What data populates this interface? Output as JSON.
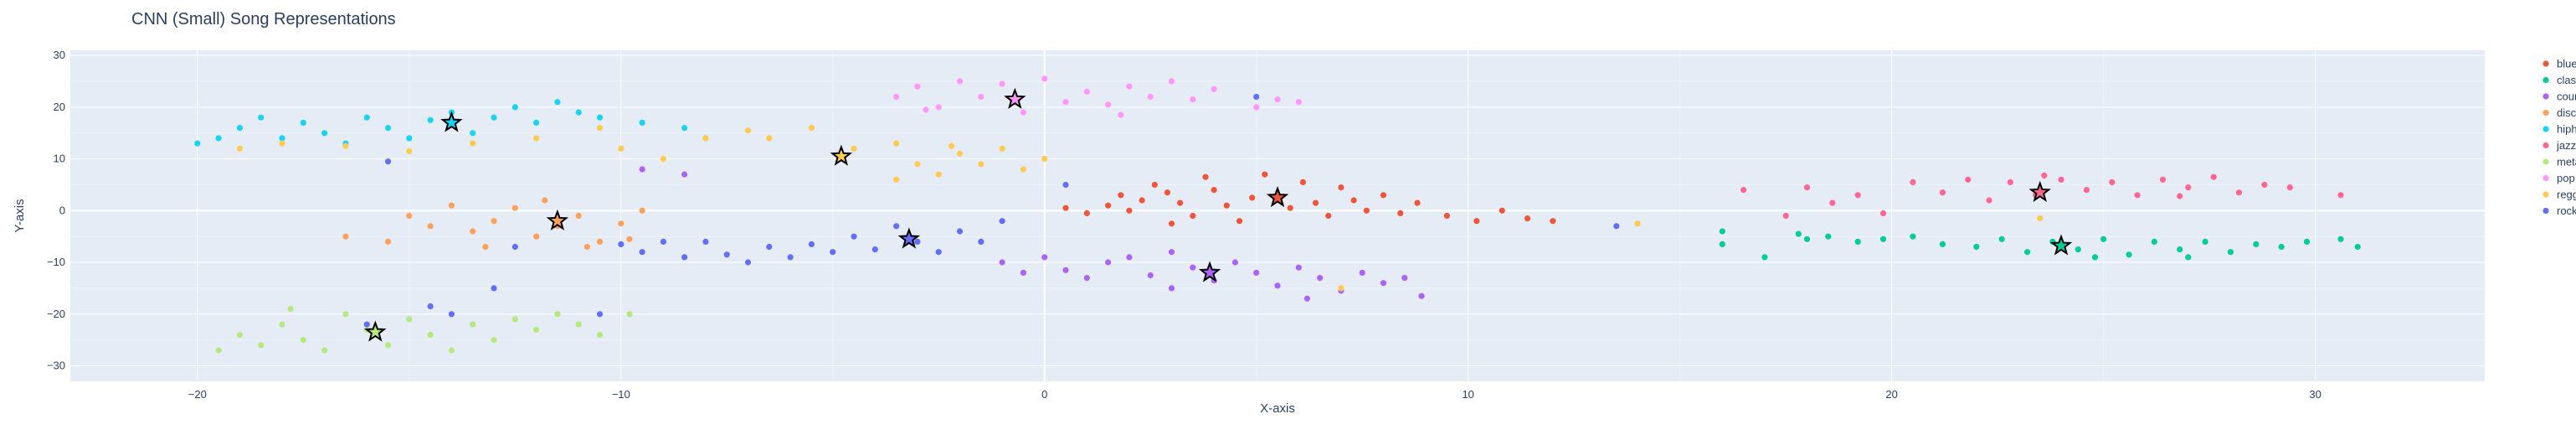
{
  "chart_data": {
    "type": "scatter",
    "title": "CNN (Small) Song Representations",
    "xlabel": "X-axis",
    "ylabel": "Y-axis",
    "xlim": [
      -23,
      34
    ],
    "ylim": [
      -33,
      31
    ],
    "x_ticks": [
      -20,
      -10,
      0,
      10,
      20,
      30
    ],
    "y_ticks": [
      -30,
      -20,
      -10,
      0,
      10,
      20,
      30
    ],
    "grid": true,
    "legend_position": "top-right",
    "centroid_marker": "star",
    "series": [
      {
        "name": "blues",
        "color": "#EF553B",
        "points": [
          [
            0.5,
            0.5
          ],
          [
            1.0,
            -0.5
          ],
          [
            1.5,
            1.0
          ],
          [
            2.0,
            0
          ],
          [
            2.3,
            2.0
          ],
          [
            2.6,
            5.0
          ],
          [
            2.9,
            3.5
          ],
          [
            3.2,
            1.5
          ],
          [
            3.5,
            -1.0
          ],
          [
            3.8,
            6.5
          ],
          [
            4.0,
            4.0
          ],
          [
            4.3,
            1.0
          ],
          [
            4.6,
            -2.0
          ],
          [
            4.9,
            2.5
          ],
          [
            5.2,
            7.0
          ],
          [
            5.5,
            3.0
          ],
          [
            5.8,
            0.5
          ],
          [
            6.1,
            5.5
          ],
          [
            6.4,
            1.5
          ],
          [
            6.7,
            -1.0
          ],
          [
            7.0,
            4.5
          ],
          [
            7.3,
            2.0
          ],
          [
            7.6,
            0
          ],
          [
            8.0,
            3.0
          ],
          [
            8.4,
            -0.5
          ],
          [
            8.8,
            1.5
          ],
          [
            9.5,
            -1.0
          ],
          [
            10.2,
            -2.0
          ],
          [
            10.8,
            0
          ],
          [
            11.4,
            -1.5
          ],
          [
            12.0,
            -2.0
          ],
          [
            3.0,
            -2.5
          ],
          [
            1.8,
            3.0
          ]
        ],
        "centroid": [
          5.5,
          2.5
        ]
      },
      {
        "name": "classical",
        "color": "#00CC96",
        "points": [
          [
            16.0,
            -4.0
          ],
          [
            17.0,
            -9.0
          ],
          [
            17.8,
            -4.5
          ],
          [
            18.5,
            -5.0
          ],
          [
            19.2,
            -6.0
          ],
          [
            19.8,
            -5.5
          ],
          [
            20.5,
            -5.0
          ],
          [
            21.2,
            -6.5
          ],
          [
            22.0,
            -7.0
          ],
          [
            22.6,
            -5.5
          ],
          [
            23.2,
            -8.0
          ],
          [
            23.8,
            -6.0
          ],
          [
            24.4,
            -7.5
          ],
          [
            25.0,
            -5.5
          ],
          [
            25.6,
            -8.5
          ],
          [
            26.2,
            -6.0
          ],
          [
            26.8,
            -7.5
          ],
          [
            27.4,
            -6.0
          ],
          [
            28.0,
            -8.0
          ],
          [
            28.6,
            -6.5
          ],
          [
            29.2,
            -7.0
          ],
          [
            29.8,
            -6.0
          ],
          [
            30.6,
            -5.5
          ],
          [
            31.0,
            -7.0
          ],
          [
            16.0,
            -6.5
          ],
          [
            18.0,
            -5.5
          ],
          [
            24.8,
            -9.0
          ],
          [
            27.0,
            -9.0
          ]
        ],
        "centroid": [
          24.0,
          -6.8
        ]
      },
      {
        "name": "country",
        "color": "#AB63FA",
        "points": [
          [
            -9.5,
            8.0
          ],
          [
            -8.5,
            7.0
          ],
          [
            -1.0,
            -10.0
          ],
          [
            -0.5,
            -12.0
          ],
          [
            0,
            -9.0
          ],
          [
            0.5,
            -11.5
          ],
          [
            1.0,
            -13.0
          ],
          [
            1.5,
            -10.0
          ],
          [
            2.0,
            -9.0
          ],
          [
            2.5,
            -12.5
          ],
          [
            3.0,
            -8.0
          ],
          [
            3.5,
            -11.0
          ],
          [
            4.0,
            -13.5
          ],
          [
            4.5,
            -10.0
          ],
          [
            5.0,
            -12.0
          ],
          [
            5.5,
            -14.5
          ],
          [
            6.0,
            -11.0
          ],
          [
            6.5,
            -13.0
          ],
          [
            7.0,
            -15.5
          ],
          [
            7.5,
            -12.0
          ],
          [
            8.0,
            -14.0
          ],
          [
            8.5,
            -13.0
          ],
          [
            8.9,
            -16.5
          ],
          [
            3.0,
            -15.0
          ],
          [
            6.2,
            -17.0
          ]
        ],
        "centroid": [
          3.9,
          -12.0
        ]
      },
      {
        "name": "disco",
        "color": "#FFA15A",
        "points": [
          [
            -15.0,
            -1.0
          ],
          [
            -14.5,
            -3.0
          ],
          [
            -14.0,
            1.0
          ],
          [
            -13.5,
            -4.0
          ],
          [
            -13.0,
            -2.0
          ],
          [
            -12.5,
            0.5
          ],
          [
            -12.0,
            -5.0
          ],
          [
            -11.5,
            -3.0
          ],
          [
            -11.0,
            -1.0
          ],
          [
            -10.5,
            -6.0
          ],
          [
            -10.0,
            -2.5
          ],
          [
            -9.5,
            0
          ],
          [
            -13.2,
            -7.0
          ],
          [
            -11.8,
            2.0
          ],
          [
            -10.8,
            -7.0
          ],
          [
            -16.5,
            -5.0
          ],
          [
            -15.5,
            -6.0
          ],
          [
            -9.8,
            -5.5
          ]
        ],
        "centroid": [
          -11.5,
          -2.0
        ]
      },
      {
        "name": "hiphop",
        "color": "#19D3F3",
        "points": [
          [
            -20.0,
            13.0
          ],
          [
            -19.5,
            14.0
          ],
          [
            -19.0,
            16.0
          ],
          [
            -18.5,
            18.0
          ],
          [
            -18.0,
            14.0
          ],
          [
            -17.5,
            17.0
          ],
          [
            -17.0,
            15.0
          ],
          [
            -16.5,
            13.0
          ],
          [
            -16.0,
            18.0
          ],
          [
            -15.5,
            16.0
          ],
          [
            -15.0,
            14.0
          ],
          [
            -14.5,
            17.5
          ],
          [
            -14.0,
            19.0
          ],
          [
            -13.5,
            15.0
          ],
          [
            -13.0,
            18.0
          ],
          [
            -12.5,
            20.0
          ],
          [
            -12.0,
            17.0
          ],
          [
            -11.5,
            21.0
          ],
          [
            -11.0,
            19.0
          ],
          [
            -10.5,
            18.0
          ],
          [
            -9.5,
            17.0
          ],
          [
            -8.5,
            16.0
          ]
        ],
        "centroid": [
          -14.0,
          17.0
        ]
      },
      {
        "name": "jazz",
        "color": "#FF6692",
        "points": [
          [
            16.5,
            4.0
          ],
          [
            17.5,
            -1.0
          ],
          [
            18.0,
            4.5
          ],
          [
            18.6,
            1.5
          ],
          [
            19.2,
            3.0
          ],
          [
            19.8,
            -0.5
          ],
          [
            20.5,
            5.5
          ],
          [
            21.2,
            3.5
          ],
          [
            21.8,
            6.0
          ],
          [
            22.3,
            2.0
          ],
          [
            22.8,
            5.5
          ],
          [
            23.4,
            3.0
          ],
          [
            24.0,
            6.0
          ],
          [
            24.6,
            4.0
          ],
          [
            25.2,
            5.5
          ],
          [
            25.8,
            3.0
          ],
          [
            26.4,
            6.0
          ],
          [
            27.0,
            4.5
          ],
          [
            27.6,
            6.5
          ],
          [
            28.2,
            3.5
          ],
          [
            28.8,
            5.0
          ],
          [
            29.4,
            4.5
          ],
          [
            30.6,
            3.0
          ],
          [
            23.6,
            6.8
          ],
          [
            26.8,
            2.8
          ]
        ],
        "centroid": [
          23.5,
          3.5
        ]
      },
      {
        "name": "metal",
        "color": "#B6E880",
        "points": [
          [
            -19.5,
            -27.0
          ],
          [
            -19.0,
            -24.0
          ],
          [
            -18.5,
            -26.0
          ],
          [
            -18.0,
            -22.0
          ],
          [
            -17.5,
            -25.0
          ],
          [
            -17.0,
            -27.0
          ],
          [
            -16.5,
            -20.0
          ],
          [
            -16.0,
            -23.0
          ],
          [
            -15.5,
            -26.0
          ],
          [
            -15.0,
            -21.0
          ],
          [
            -14.5,
            -24.0
          ],
          [
            -14.0,
            -27.0
          ],
          [
            -13.5,
            -22.0
          ],
          [
            -13.0,
            -25.0
          ],
          [
            -12.5,
            -21.0
          ],
          [
            -12.0,
            -23.0
          ],
          [
            -11.5,
            -20.0
          ],
          [
            -11.0,
            -22.0
          ],
          [
            -10.5,
            -24.0
          ],
          [
            -9.8,
            -20.0
          ],
          [
            -17.8,
            -19.0
          ]
        ],
        "centroid": [
          -15.8,
          -23.5
        ]
      },
      {
        "name": "pop",
        "color": "#FF97FF",
        "points": [
          [
            -3.5,
            22.0
          ],
          [
            -3.0,
            24.0
          ],
          [
            -2.5,
            20.0
          ],
          [
            -2.0,
            25.0
          ],
          [
            -1.5,
            22.0
          ],
          [
            -1.0,
            24.5
          ],
          [
            -0.5,
            19.0
          ],
          [
            0,
            25.5
          ],
          [
            0.5,
            21.0
          ],
          [
            1.0,
            23.0
          ],
          [
            1.5,
            20.5
          ],
          [
            2.0,
            24.0
          ],
          [
            2.5,
            22.0
          ],
          [
            3.0,
            25.0
          ],
          [
            3.5,
            21.5
          ],
          [
            4.0,
            23.5
          ],
          [
            5.0,
            20.0
          ],
          [
            5.5,
            21.5
          ],
          [
            6.0,
            21.0
          ],
          [
            -2.8,
            19.5
          ],
          [
            1.8,
            18.5
          ]
        ],
        "centroid": [
          -0.7,
          21.5
        ]
      },
      {
        "name": "reggae",
        "color": "#FECB52",
        "points": [
          [
            -19.0,
            12.0
          ],
          [
            -18.0,
            13.0
          ],
          [
            -16.5,
            12.5
          ],
          [
            -15.0,
            11.5
          ],
          [
            -13.5,
            13.0
          ],
          [
            -12.0,
            14.0
          ],
          [
            -10.0,
            12.0
          ],
          [
            -8.0,
            14.0
          ],
          [
            -7.0,
            15.5
          ],
          [
            -6.5,
            14.0
          ],
          [
            -5.5,
            16.0
          ],
          [
            -4.5,
            12.0
          ],
          [
            -3.5,
            13.0
          ],
          [
            -3.0,
            9.0
          ],
          [
            -2.5,
            7.0
          ],
          [
            -2.0,
            11.0
          ],
          [
            -1.5,
            9.0
          ],
          [
            -1.0,
            12.0
          ],
          [
            -0.5,
            8.0
          ],
          [
            0,
            10.0
          ],
          [
            -3.5,
            6.0
          ],
          [
            -2.2,
            12.5
          ],
          [
            -10.5,
            16.0
          ],
          [
            -9.0,
            10.0
          ],
          [
            14.0,
            -2.5
          ],
          [
            23.5,
            -1.5
          ],
          [
            7.0,
            -15.0
          ]
        ],
        "centroid": [
          -4.8,
          10.5
        ]
      },
      {
        "name": "rock",
        "color": "#636EFA",
        "points": [
          [
            -10.0,
            -6.5
          ],
          [
            -9.5,
            -8.0
          ],
          [
            -9.0,
            -6.0
          ],
          [
            -8.5,
            -9.0
          ],
          [
            -8.0,
            -6.0
          ],
          [
            -7.5,
            -8.5
          ],
          [
            -7.0,
            -10.0
          ],
          [
            -6.5,
            -7.0
          ],
          [
            -6.0,
            -9.0
          ],
          [
            -5.5,
            -6.5
          ],
          [
            -5.0,
            -8.0
          ],
          [
            -4.5,
            -5.0
          ],
          [
            -4.0,
            -7.5
          ],
          [
            -3.5,
            -3.0
          ],
          [
            -3.0,
            -6.0
          ],
          [
            -2.5,
            -8.0
          ],
          [
            -2.0,
            -4.0
          ],
          [
            -1.5,
            -6.0
          ],
          [
            -1.0,
            -2.0
          ],
          [
            -14.5,
            -18.5
          ],
          [
            -14.0,
            -20.0
          ],
          [
            -13.0,
            -15.0
          ],
          [
            -15.5,
            9.5
          ],
          [
            -10.5,
            -20.0
          ],
          [
            -16.0,
            -22.0
          ],
          [
            0.5,
            5.0
          ],
          [
            5.0,
            22.0
          ],
          [
            13.5,
            -3.0
          ],
          [
            -12.5,
            -7.0
          ]
        ],
        "centroid": [
          -3.2,
          -5.5
        ]
      }
    ]
  }
}
